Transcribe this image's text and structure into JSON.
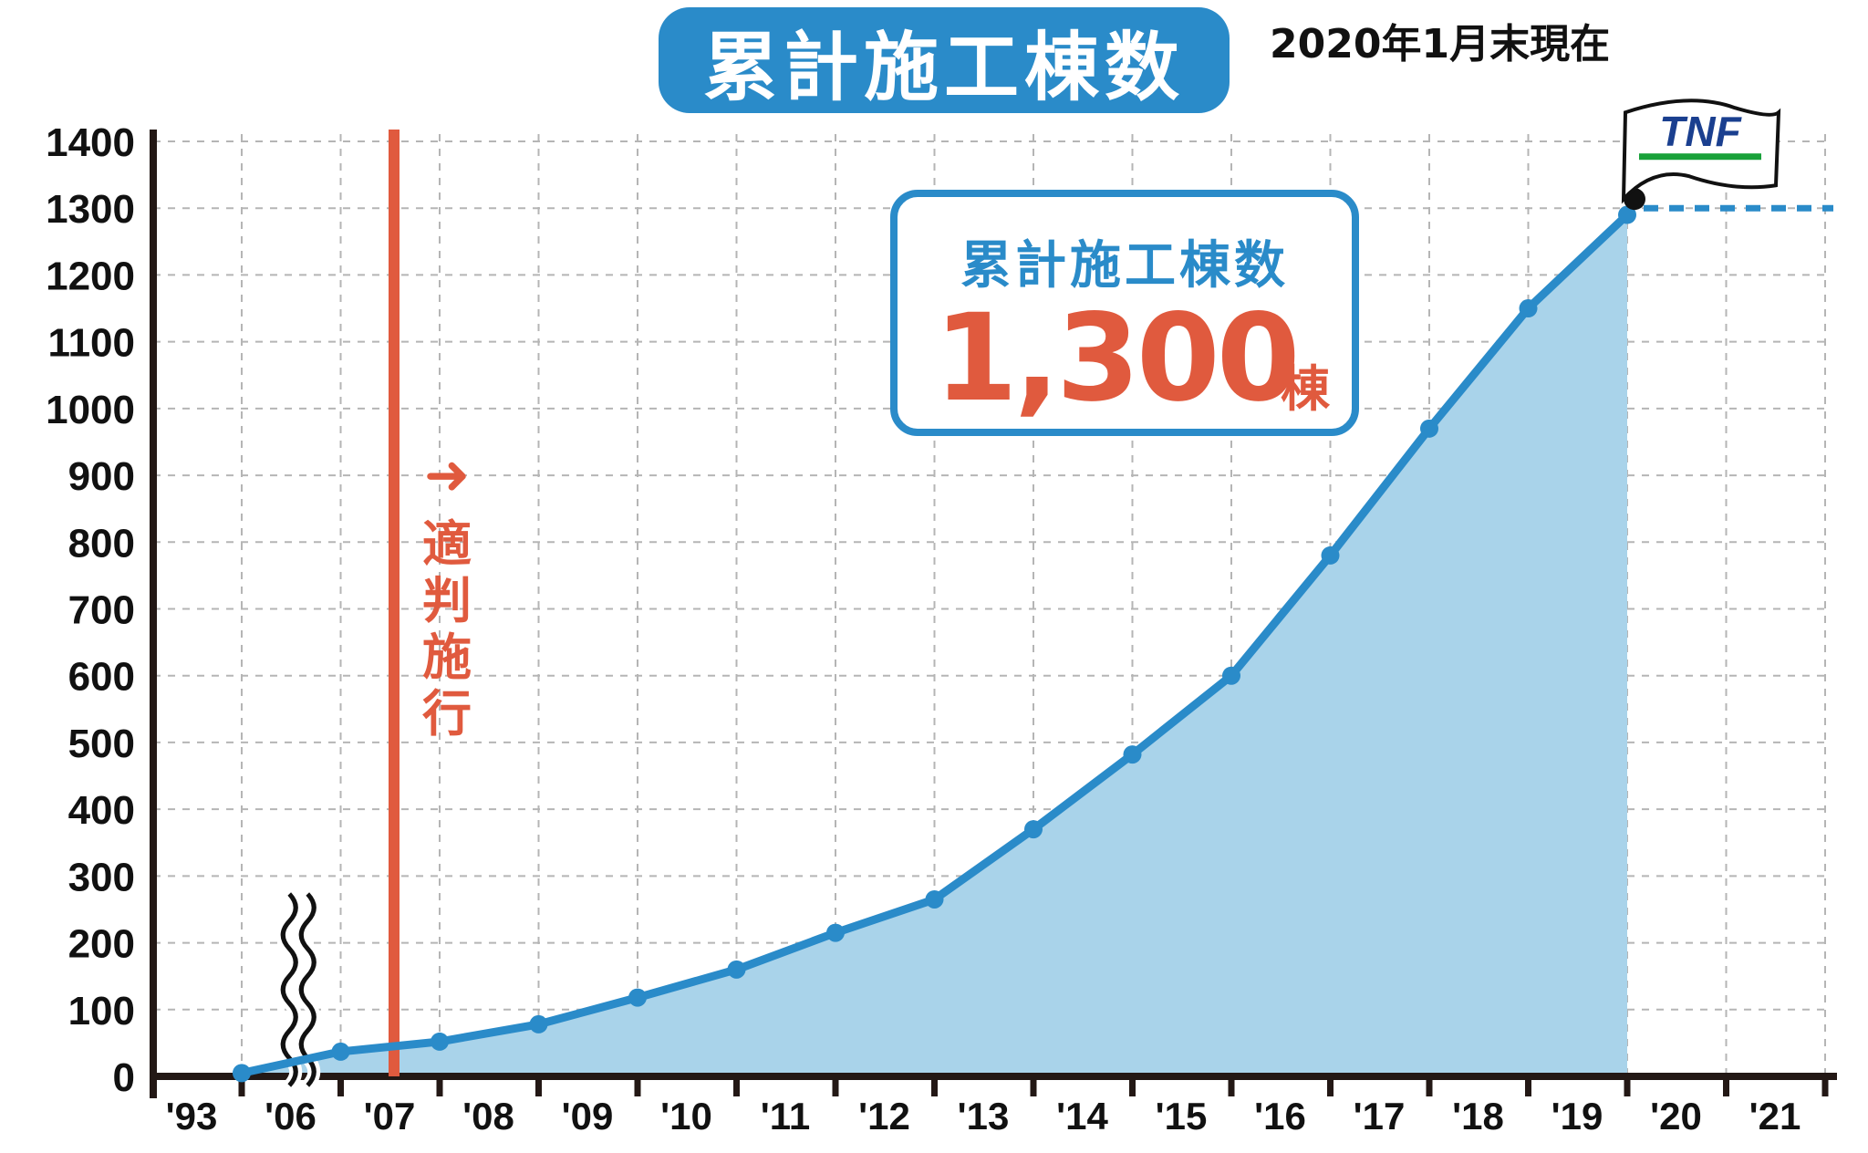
{
  "header": {
    "title": "累計施工棟数",
    "as_of": "2020年1月末現在"
  },
  "total_box": {
    "label": "累計施工棟数",
    "value": "1,300",
    "unit": "棟"
  },
  "annotation": {
    "arrow": "➜",
    "chars": [
      "適",
      "判",
      "施",
      "行"
    ]
  },
  "flag": {
    "text": "TNF"
  },
  "colors": {
    "accent": "#2a8bc9",
    "area": "#a9d3ea",
    "highlight": "#e05a3e",
    "axis": "#231815",
    "grid": "#b5b5b5",
    "flag_green": "#19a13a",
    "flag_navy": "#1a3f8f"
  },
  "chart_data": {
    "type": "area",
    "title": "累計施工棟数",
    "xlabel": "",
    "ylabel": "",
    "ylim": [
      0,
      1400
    ],
    "yticks": [
      0,
      100,
      200,
      300,
      400,
      500,
      600,
      700,
      800,
      900,
      1000,
      1100,
      1200,
      1300,
      1400
    ],
    "categories": [
      "'93",
      "'06",
      "'07",
      "'08",
      "'09",
      "'10",
      "'11",
      "'12",
      "'13",
      "'14",
      "'15",
      "'16",
      "'17",
      "'18",
      "'19",
      "'20",
      "'21"
    ],
    "axis_break_between": [
      "'93",
      "'06"
    ],
    "series": [
      {
        "values": [
          5,
          37,
          52,
          78,
          118,
          160,
          215,
          265,
          370,
          482,
          600,
          780,
          970,
          1150,
          1290,
          null,
          null
        ]
      }
    ],
    "target_value": 1300,
    "event_marker": {
      "label": "適判施行",
      "at_category": "'07"
    },
    "grid": true
  }
}
